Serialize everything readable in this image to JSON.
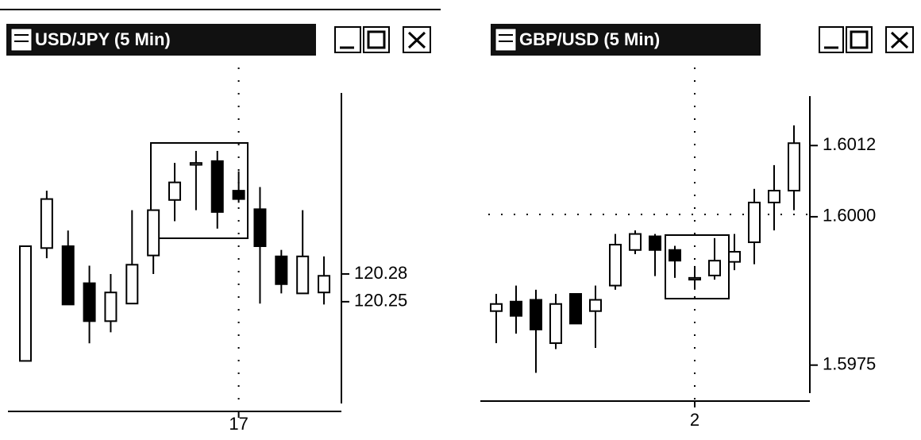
{
  "chart_data": [
    {
      "type": "candlestick",
      "title": "USD/JPY (5 Min)",
      "categories": [
        null,
        null,
        null,
        null,
        null,
        null,
        null,
        null,
        null,
        null,
        "17",
        null,
        null,
        null,
        null
      ],
      "open": [
        120.186,
        120.308,
        120.31,
        120.27,
        120.229,
        120.248,
        120.3,
        120.36,
        120.398,
        120.402,
        120.37,
        120.35,
        120.299,
        120.259,
        120.26
      ],
      "high": [
        120.31,
        120.37,
        120.327,
        120.289,
        120.28,
        120.349,
        120.349,
        120.4,
        120.413,
        120.413,
        120.391,
        120.374,
        120.306,
        120.349,
        120.299
      ],
      "low": [
        120.186,
        120.297,
        120.247,
        120.205,
        120.217,
        120.248,
        120.28,
        120.337,
        120.349,
        120.329,
        120.357,
        120.248,
        120.259,
        120.259,
        120.247
      ],
      "close": [
        120.31,
        120.361,
        120.247,
        120.229,
        120.26,
        120.29,
        120.349,
        120.379,
        120.4,
        120.347,
        120.361,
        120.31,
        120.269,
        120.299,
        120.278
      ],
      "ylim": [
        120.14,
        120.48
      ],
      "yticks": [
        120.28,
        120.25
      ],
      "up_color": "#ffffff",
      "down_color": "#000000"
    },
    {
      "type": "candlestick",
      "title": "GBP/USD (5 Min)",
      "categories": [
        null,
        null,
        null,
        null,
        null,
        null,
        null,
        null,
        null,
        null,
        "2",
        null,
        null,
        null,
        null,
        null
      ],
      "open": [
        1.59841,
        1.59857,
        1.5986,
        1.59787,
        1.5987,
        1.59841,
        1.59884,
        1.59944,
        1.59967,
        1.59944,
        1.59894,
        1.59901,
        1.59924,
        1.59957,
        1.60024,
        1.60044
      ],
      "high": [
        1.5987,
        1.59884,
        1.59877,
        1.5987,
        1.5987,
        1.59884,
        1.59971,
        1.59977,
        1.59971,
        1.59951,
        1.59917,
        1.59964,
        1.59971,
        1.60047,
        1.60087,
        1.60154
      ],
      "low": [
        1.59787,
        1.59803,
        1.59737,
        1.59777,
        1.5982,
        1.59779,
        1.59877,
        1.59937,
        1.599,
        1.59897,
        1.59877,
        1.59894,
        1.5991,
        1.5992,
        1.59977,
        1.60011
      ],
      "close": [
        1.59853,
        1.59833,
        1.5981,
        1.59853,
        1.5982,
        1.5986,
        1.59953,
        1.59971,
        1.59944,
        1.59926,
        1.59897,
        1.59926,
        1.59941,
        1.60024,
        1.60044,
        1.60124
      ],
      "ylim": [
        1.5968,
        1.6021
      ],
      "yticks": [
        {
          "value": 1.6012,
          "label": "1.6012"
        },
        {
          "value": 1.6,
          "label": "1.6000"
        },
        {
          "value": 1.5975,
          "label": "1.5975"
        }
      ],
      "up_color": "#ffffff",
      "down_color": "#000000"
    }
  ]
}
